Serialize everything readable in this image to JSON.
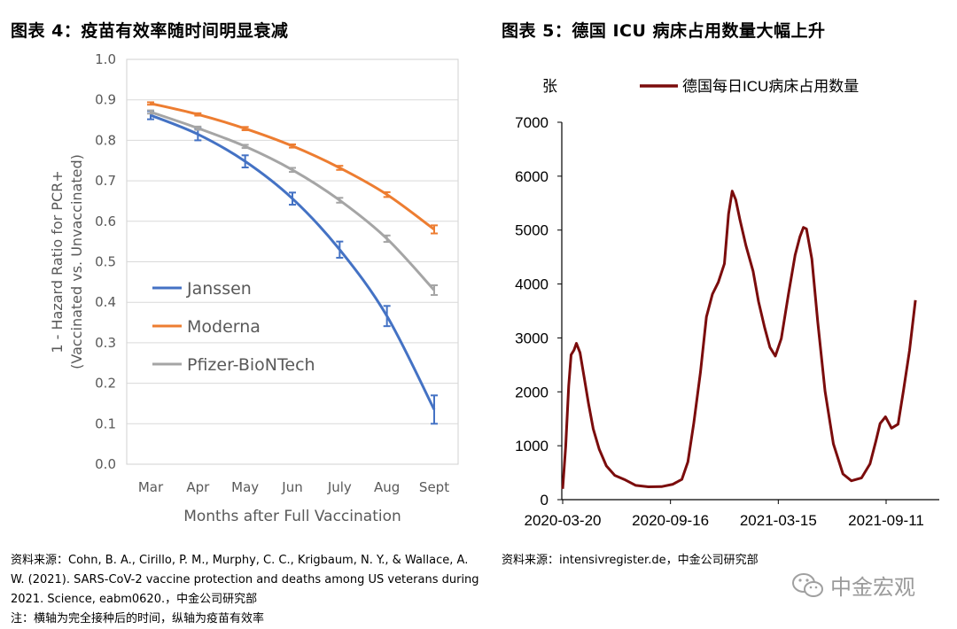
{
  "titles": {
    "left": "图表 4：疫苗有效率随时间明显衰减",
    "right": "图表 5：德国 ICU 病床占用数量大幅上升"
  },
  "chart_data": [
    {
      "type": "line",
      "xlabel": "Months after Full Vaccination",
      "ylabel_line1": "1 - Hazard Ratio for PCR+",
      "ylabel_line2": "(Vaccinated vs. Unvaccinated)",
      "categories": [
        "Mar",
        "Apr",
        "May",
        "Jun",
        "July",
        "Aug",
        "Sept"
      ],
      "ylim": [
        0,
        1
      ],
      "yticks": [
        "0.0",
        "0.1",
        "0.2",
        "0.3",
        "0.4",
        "0.5",
        "0.6",
        "0.7",
        "0.8",
        "0.9",
        "1.0"
      ],
      "grid": true,
      "legend_position": "center-left",
      "series": [
        {
          "name": "Janssen",
          "color": "#4472C4",
          "values": [
            0.862,
            0.815,
            0.748,
            0.656,
            0.53,
            0.366,
            0.135
          ],
          "err": [
            0.01,
            0.015,
            0.015,
            0.015,
            0.02,
            0.025,
            0.035
          ]
        },
        {
          "name": "Moderna",
          "color": "#ED7D31",
          "values": [
            0.891,
            0.864,
            0.829,
            0.786,
            0.732,
            0.666,
            0.58
          ],
          "err": [
            0.003,
            0.003,
            0.004,
            0.004,
            0.005,
            0.006,
            0.01
          ]
        },
        {
          "name": "Pfizer-BioNTech",
          "color": "#A5A5A5",
          "values": [
            0.87,
            0.83,
            0.785,
            0.727,
            0.652,
            0.557,
            0.43
          ],
          "err": [
            0.004,
            0.004,
            0.004,
            0.005,
            0.006,
            0.008,
            0.012
          ]
        }
      ]
    },
    {
      "type": "line",
      "y_unit": "张",
      "ylim": [
        0,
        7000
      ],
      "yticks": [
        "0",
        "1000",
        "2000",
        "3000",
        "4000",
        "5000",
        "6000",
        "7000"
      ],
      "xticks": [
        "2020-03-20",
        "2020-09-16",
        "2021-03-15",
        "2021-09-11"
      ],
      "grid": false,
      "legend_position": "top",
      "series": [
        {
          "name": "德国每日ICU病床占用数量",
          "color": "#7B0C0C",
          "x": [
            "2020-03-20",
            "2020-03-25",
            "2020-03-30",
            "2020-04-03",
            "2020-04-08",
            "2020-04-12",
            "2020-04-18",
            "2020-04-25",
            "2020-05-02",
            "2020-05-10",
            "2020-05-20",
            "2020-06-01",
            "2020-06-15",
            "2020-07-01",
            "2020-07-20",
            "2020-08-10",
            "2020-09-01",
            "2020-09-20",
            "2020-10-05",
            "2020-10-15",
            "2020-10-25",
            "2020-11-05",
            "2020-11-15",
            "2020-11-25",
            "2020-12-05",
            "2020-12-15",
            "2020-12-22",
            "2020-12-28",
            "2021-01-03",
            "2021-01-10",
            "2021-01-20",
            "2021-02-01",
            "2021-02-10",
            "2021-02-20",
            "2021-03-01",
            "2021-03-10",
            "2021-03-20",
            "2021-04-01",
            "2021-04-12",
            "2021-04-20",
            "2021-04-26",
            "2021-05-01",
            "2021-05-10",
            "2021-05-20",
            "2021-06-01",
            "2021-06-15",
            "2021-07-01",
            "2021-07-15",
            "2021-08-01",
            "2021-08-15",
            "2021-08-25",
            "2021-09-01",
            "2021-09-10",
            "2021-09-20",
            "2021-10-01",
            "2021-10-10",
            "2021-10-20",
            "2021-10-30"
          ],
          "values": [
            200,
            1000,
            2100,
            2650,
            2800,
            2900,
            2700,
            2300,
            1800,
            1300,
            900,
            650,
            450,
            350,
            300,
            250,
            230,
            250,
            400,
            700,
            1400,
            2400,
            3400,
            3800,
            4000,
            4400,
            5300,
            5700,
            5600,
            5200,
            4700,
            4200,
            3700,
            3200,
            2800,
            2700,
            3000,
            3800,
            4500,
            4900,
            5050,
            5000,
            4500,
            3300,
            2000,
            1000,
            500,
            350,
            380,
            700,
            1100,
            1400,
            1500,
            1350,
            1400,
            2000,
            2800,
            3700
          ]
        }
      ]
    }
  ],
  "source_left": {
    "line1": "资料来源：Cohn, B. A., Cirillo, P. M., Murphy, C. C., Krigbaum, N. Y., & Wallace, A.",
    "line2": "W. (2021). SARS-CoV-2 vaccine protection and deaths among US veterans during",
    "line3": "2021. Science, eabm0620.，中金公司研究部",
    "note": "注：横轴为完全接种后的时间，纵轴为疫苗有效率"
  },
  "source_right": "资料来源：intensivregister.de，中金公司研究部",
  "watermark": {
    "text": "中金宏观",
    "icon": "wechat-icon"
  }
}
